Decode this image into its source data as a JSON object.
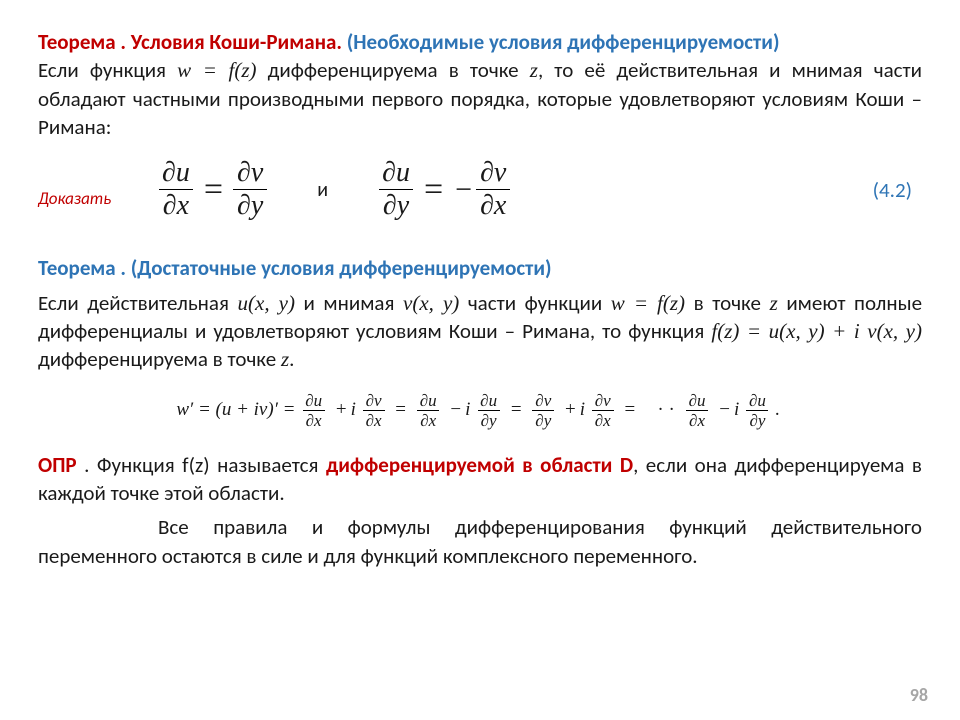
{
  "theorem1": {
    "label": "Теорема . Условия Коши-Римана.",
    "qual": " (Необходимые условия дифференцируемости",
    "qual_close": ")",
    "pre": "Если функция ",
    "wfz": "w = f(z)",
    "mid": " дифференцируема в точке ",
    "z": "z",
    "post": ", то её действительная и мнимая части обладают частными производными первого порядка, которые удовлетворяют условиям Коши – Римана:"
  },
  "eq": {
    "prove": "Доказать",
    "du": "∂u",
    "dv": "∂v",
    "dx": "∂x",
    "dy": "∂y",
    "eq": "=",
    "and": "и",
    "minus": "−",
    "num": "(4.2)"
  },
  "theorem2": {
    "label": "Теорема . (Достаточные условия дифференцируемости)",
    "p1": "Если действительная ",
    "uxy": "u(x, y)",
    "p2": " и мнимая ",
    "vxy": "v(x, y)",
    "p3": " части функции ",
    "wfz": "w = f(z)",
    "p4": " в точке ",
    "z": "z",
    "p5": " имеют полные дифференциалы и удовлетворяют условиям Коши – Римана, то функция ",
    "fz": "f(z) = u(x, y) + i v(x, y)",
    "p6": " дифференцируема в точке ",
    "z2": "z",
    "p7": "."
  },
  "wprime": {
    "lead": "w′ = (u + iv)′ =",
    "eq": "=",
    "plus": "+",
    "minus": "−",
    "i": "i",
    "du": "∂u",
    "dv": "∂v",
    "dx": "∂x",
    "dy": "∂y",
    "dots": "·  ·",
    "period": "."
  },
  "def": {
    "label": "ОПР",
    "p1": " . Функция f(z) называется ",
    "term": "дифференцируемой в области D",
    "p2": ", если она дифференцируема в каждой точке этой области."
  },
  "closing": {
    "text": "Все правила и формулы дифференцирования функций действительного переменного остаются в силе и для функций комплексного переменного."
  },
  "pagenum": "98"
}
